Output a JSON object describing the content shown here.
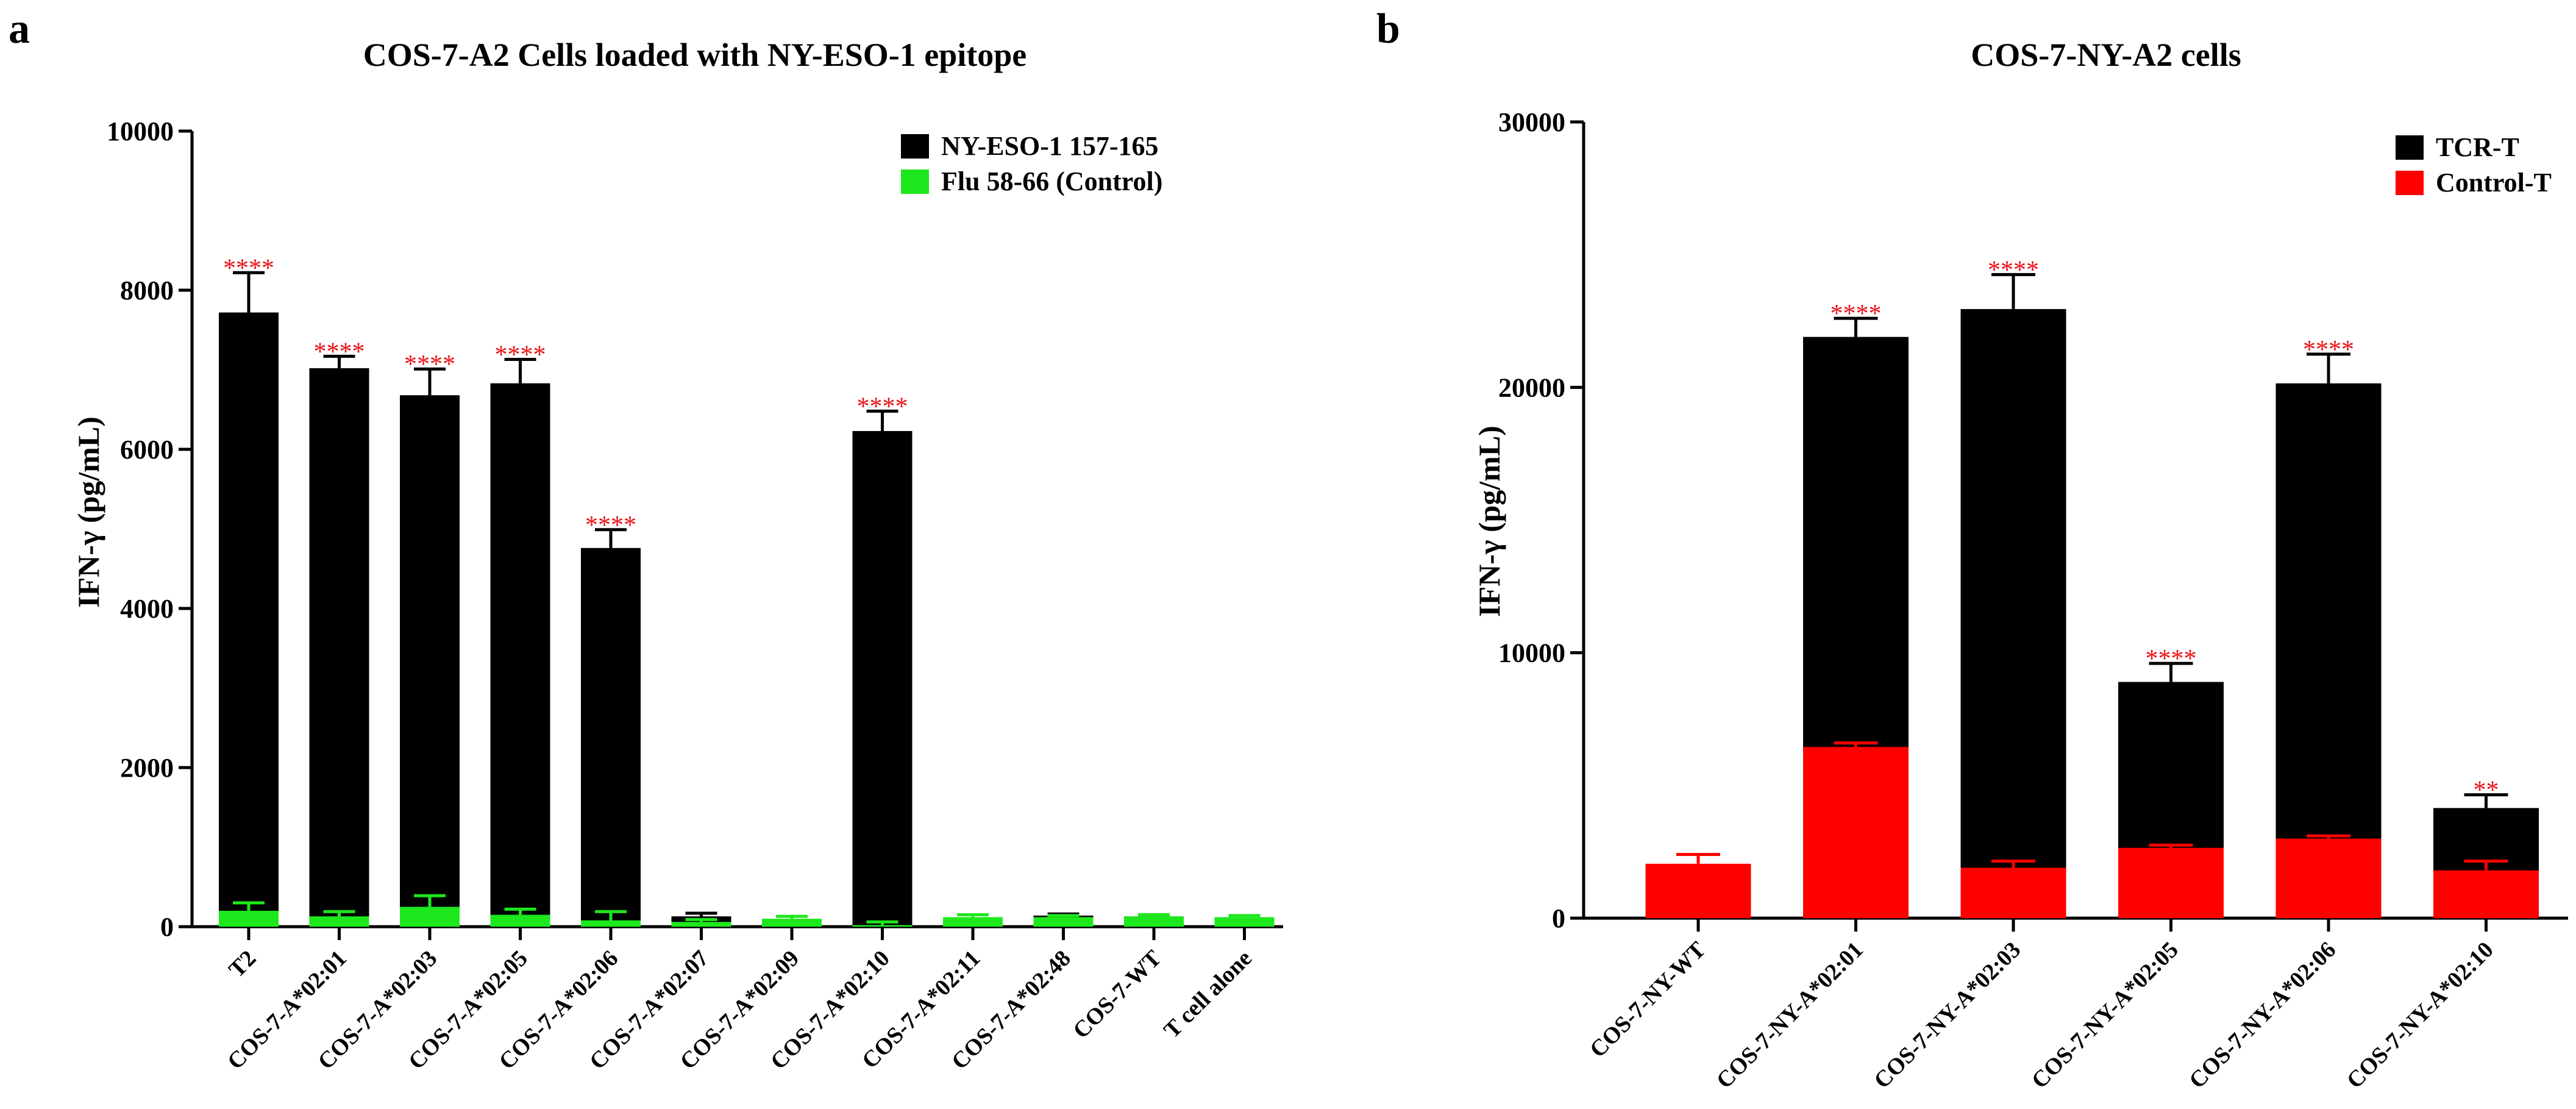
{
  "panels": [
    {
      "letter": "a"
    },
    {
      "letter": "b"
    }
  ],
  "chart_data": [
    {
      "type": "bar",
      "title": "COS-7-A2 Cells  loaded with NY-ESO-1 epitope",
      "ylabel": "IFN-γ (pg/mL)",
      "xlabel": "",
      "ylim": [
        0,
        10000
      ],
      "yticks": [
        "0",
        "2000",
        "4000",
        "6000",
        "8000",
        "10000"
      ],
      "legend_position": "top-right",
      "categories": [
        "T2",
        "COS-7-A*02:01",
        "COS-7-A*02:03",
        "COS-7-A*02:05",
        "COS-7-A*02:06",
        "COS-7-A*02:07",
        "COS-7-A*02:09",
        "COS-7-A*02:10",
        "COS-7-A*02:11",
        "COS-7-A*02:48",
        "COS-7-WT",
        "T cell alone"
      ],
      "series": [
        {
          "name": "NY-ESO-1  157-165",
          "color": "#000000",
          "values": [
            7720,
            7020,
            6680,
            6830,
            4760,
            130,
            0,
            6230,
            0,
            140,
            130,
            0
          ],
          "errors": [
            500,
            150,
            330,
            300,
            230,
            40,
            0,
            250,
            0,
            20,
            20,
            0
          ]
        },
        {
          "name": "Flu 58-66 (Control)",
          "color": "#1de81d",
          "values": [
            200,
            130,
            250,
            150,
            80,
            60,
            100,
            20,
            120,
            120,
            130,
            120
          ],
          "errors": [
            100,
            60,
            140,
            70,
            110,
            30,
            30,
            40,
            30,
            20,
            20,
            20
          ]
        }
      ],
      "annotations": [
        {
          "category": "T2",
          "text": "****"
        },
        {
          "category": "COS-7-A*02:01",
          "text": "****"
        },
        {
          "category": "COS-7-A*02:03",
          "text": "****"
        },
        {
          "category": "COS-7-A*02:05",
          "text": "****"
        },
        {
          "category": "COS-7-A*02:06",
          "text": "****"
        },
        {
          "category": "COS-7-A*02:10",
          "text": "****"
        }
      ]
    },
    {
      "type": "bar",
      "title": "COS-7-NY-A2 cells",
      "ylabel": "IFN-γ (pg/mL)",
      "xlabel": "",
      "ylim": [
        0,
        30000
      ],
      "yticks": [
        "0",
        "10000",
        "20000",
        "30000"
      ],
      "legend_position": "top-right",
      "categories": [
        "COS-7-NY-WT",
        "COS-7-NY-A*02:01",
        "COS-7-NY-A*02:03",
        "COS-7-NY-A*02:05",
        "COS-7-NY-A*02:06",
        "COS-7-NY-A*02:10"
      ],
      "series": [
        {
          "name": "TCR-T",
          "color": "#000000",
          "values": [
            0,
            21900,
            22950,
            8900,
            20150,
            4150
          ],
          "errors": [
            0,
            700,
            1300,
            700,
            1100,
            500
          ]
        },
        {
          "name": "Control-T",
          "color": "#ff0000",
          "values": [
            2050,
            6450,
            1900,
            2650,
            3000,
            1800
          ],
          "errors": [
            350,
            150,
            250,
            100,
            100,
            350
          ]
        }
      ],
      "annotations": [
        {
          "category": "COS-7-NY-A*02:01",
          "text": "****"
        },
        {
          "category": "COS-7-NY-A*02:03",
          "text": "****"
        },
        {
          "category": "COS-7-NY-A*02:05",
          "text": "****"
        },
        {
          "category": "COS-7-NY-A*02:06",
          "text": "****"
        },
        {
          "category": "COS-7-NY-A*02:10",
          "text": "**"
        }
      ]
    }
  ]
}
